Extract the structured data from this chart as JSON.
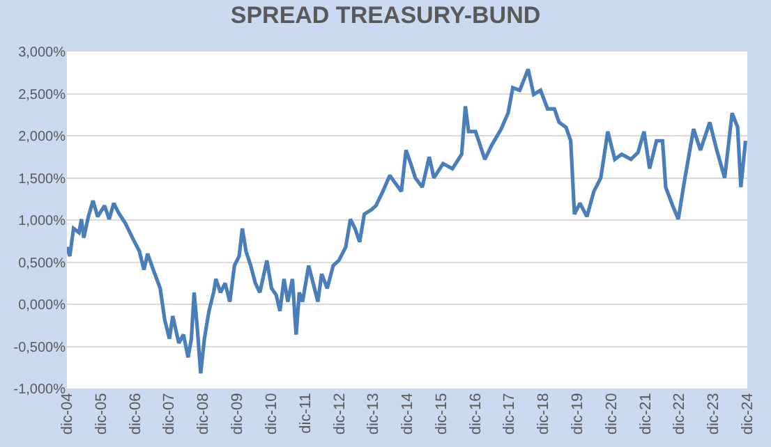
{
  "chart_data": {
    "type": "line",
    "title": "SPREAD TREASURY-BUND",
    "x": [
      "2004-12-01",
      "2005-01-01",
      "2005-02-10",
      "2005-04-10",
      "2005-05-06",
      "2005-05-31",
      "2005-07-19",
      "2005-09-07",
      "2005-10-27",
      "2006-01-09",
      "2006-02-28",
      "2006-04-18",
      "2006-06-07",
      "2006-08-21",
      "2006-11-04",
      "2007-01-18",
      "2007-03-08",
      "2007-04-16",
      "2007-06-16",
      "2007-08-29",
      "2007-10-18",
      "2007-12-07",
      "2008-01-11",
      "2008-03-16",
      "2008-05-05",
      "2008-06-24",
      "2008-07-29",
      "2008-08-28",
      "2008-10-02",
      "2008-11-06",
      "2008-12-16",
      "2009-02-03",
      "2009-03-25",
      "2009-04-18",
      "2009-06-07",
      "2009-07-27",
      "2009-09-15",
      "2009-11-04",
      "2009-12-24",
      "2010-01-27",
      "2010-03-08",
      "2010-04-27",
      "2010-06-16",
      "2010-08-04",
      "2010-10-18",
      "2010-12-07",
      "2011-01-26",
      "2011-03-07",
      "2011-04-20",
      "2011-05-30",
      "2011-07-19",
      "2011-08-28",
      "2011-10-01",
      "2011-11-05",
      "2012-01-09",
      "2012-02-27",
      "2012-04-17",
      "2012-05-28",
      "2012-07-27",
      "2012-09-29",
      "2012-11-28",
      "2013-02-11",
      "2013-04-01",
      "2013-05-21",
      "2013-07-10",
      "2013-08-29",
      "2013-11-11",
      "2014-01-01",
      "2014-03-16",
      "2014-05-30",
      "2014-07-19",
      "2014-10-01",
      "2014-11-20",
      "2015-01-09",
      "2015-02-28",
      "2015-05-13",
      "2015-07-27",
      "2015-09-15",
      "2015-12-23",
      "2016-04-01",
      "2016-07-09",
      "2016-08-18",
      "2016-09-22",
      "2016-12-05",
      "2017-03-15",
      "2017-05-29",
      "2017-09-06",
      "2017-11-20",
      "2018-01-09",
      "2018-03-25",
      "2018-06-23",
      "2018-08-21",
      "2018-11-03",
      "2019-01-17",
      "2019-04-01",
      "2019-05-21",
      "2019-08-04",
      "2019-09-23",
      "2019-11-02",
      "2019-12-31",
      "2020-03-15",
      "2020-05-29",
      "2020-08-11",
      "2020-10-25",
      "2021-01-08",
      "2021-03-24",
      "2021-07-01",
      "2021-09-14",
      "2021-11-18",
      "2022-01-17",
      "2022-04-01",
      "2022-06-05",
      "2022-07-09",
      "2022-09-22",
      "2022-11-21",
      "2023-01-24",
      "2023-05-04",
      "2023-07-17",
      "2023-10-25",
      "2024-01-08",
      "2024-04-02",
      "2024-06-21",
      "2024-08-19",
      "2024-09-23",
      "2024-11-12"
    ],
    "series": [
      {
        "color": "#4a7ebb",
        "values": [
          0.68,
          0.57,
          0.9,
          0.85,
          1.01,
          0.79,
          1.04,
          1.23,
          1.04,
          1.17,
          1.01,
          1.2,
          1.09,
          0.96,
          0.79,
          0.63,
          0.41,
          0.6,
          0.41,
          0.19,
          -0.19,
          -0.41,
          -0.14,
          -0.46,
          -0.36,
          -0.63,
          -0.41,
          0.14,
          -0.3,
          -0.82,
          -0.41,
          -0.08,
          0.14,
          0.3,
          0.14,
          0.25,
          0.03,
          0.46,
          0.57,
          0.9,
          0.63,
          0.46,
          0.25,
          0.14,
          0.52,
          0.19,
          0.11,
          -0.08,
          0.3,
          0.03,
          0.3,
          -0.36,
          0.14,
          0.03,
          0.46,
          0.25,
          0.03,
          0.36,
          0.19,
          0.46,
          0.52,
          0.68,
          1.01,
          0.9,
          0.74,
          1.07,
          1.12,
          1.17,
          1.34,
          1.53,
          1.45,
          1.34,
          1.83,
          1.67,
          1.5,
          1.39,
          1.75,
          1.5,
          1.67,
          1.61,
          1.78,
          2.35,
          2.05,
          2.05,
          1.72,
          1.89,
          2.08,
          2.27,
          2.57,
          2.54,
          2.79,
          2.49,
          2.54,
          2.32,
          2.32,
          2.16,
          2.1,
          1.94,
          1.07,
          1.2,
          1.04,
          1.34,
          1.5,
          2.05,
          1.72,
          1.78,
          1.72,
          1.8,
          2.05,
          1.61,
          1.94,
          1.94,
          1.39,
          1.17,
          1.01,
          1.45,
          2.08,
          1.83,
          2.16,
          1.83,
          1.5,
          2.27,
          2.1,
          1.39,
          1.94
        ]
      }
    ],
    "xlim": [
      "2004-12-01",
      "2024-12-01"
    ],
    "xticks": [
      {
        "value": "2004-12-01",
        "label": "dic-04"
      },
      {
        "value": "2005-12-01",
        "label": "dic-05"
      },
      {
        "value": "2006-12-01",
        "label": "dic-06"
      },
      {
        "value": "2007-12-01",
        "label": "dic-07"
      },
      {
        "value": "2008-12-01",
        "label": "dic-08"
      },
      {
        "value": "2009-12-01",
        "label": "dic-09"
      },
      {
        "value": "2010-12-01",
        "label": "dic-10"
      },
      {
        "value": "2011-12-01",
        "label": "dic-11"
      },
      {
        "value": "2012-12-01",
        "label": "dic-12"
      },
      {
        "value": "2013-12-01",
        "label": "dic-13"
      },
      {
        "value": "2014-12-01",
        "label": "dic-14"
      },
      {
        "value": "2015-12-01",
        "label": "dic-15"
      },
      {
        "value": "2016-12-01",
        "label": "dic-16"
      },
      {
        "value": "2017-12-01",
        "label": "dic-17"
      },
      {
        "value": "2018-12-01",
        "label": "dic-18"
      },
      {
        "value": "2019-12-01",
        "label": "dic-19"
      },
      {
        "value": "2020-12-01",
        "label": "dic-20"
      },
      {
        "value": "2021-12-01",
        "label": "dic-21"
      },
      {
        "value": "2022-12-01",
        "label": "dic-22"
      },
      {
        "value": "2023-12-01",
        "label": "dic-23"
      },
      {
        "value": "2024-12-01",
        "label": "dic-24"
      }
    ],
    "ylim": [
      -1,
      3
    ],
    "yticks": [
      {
        "value": -1,
        "label": "-1,000%"
      },
      {
        "value": -0.5,
        "label": "-0,500%"
      },
      {
        "value": 0,
        "label": "0,000%"
      },
      {
        "value": 0.5,
        "label": "0,500%"
      },
      {
        "value": 1,
        "label": "1,000%"
      },
      {
        "value": 1.5,
        "label": "1,500%"
      },
      {
        "value": 2,
        "label": "2,000%"
      },
      {
        "value": 2.5,
        "label": "2,500%"
      },
      {
        "value": 3,
        "label": "3,000%"
      }
    ],
    "grid": "y",
    "marker": "none",
    "line_style": "solid"
  }
}
